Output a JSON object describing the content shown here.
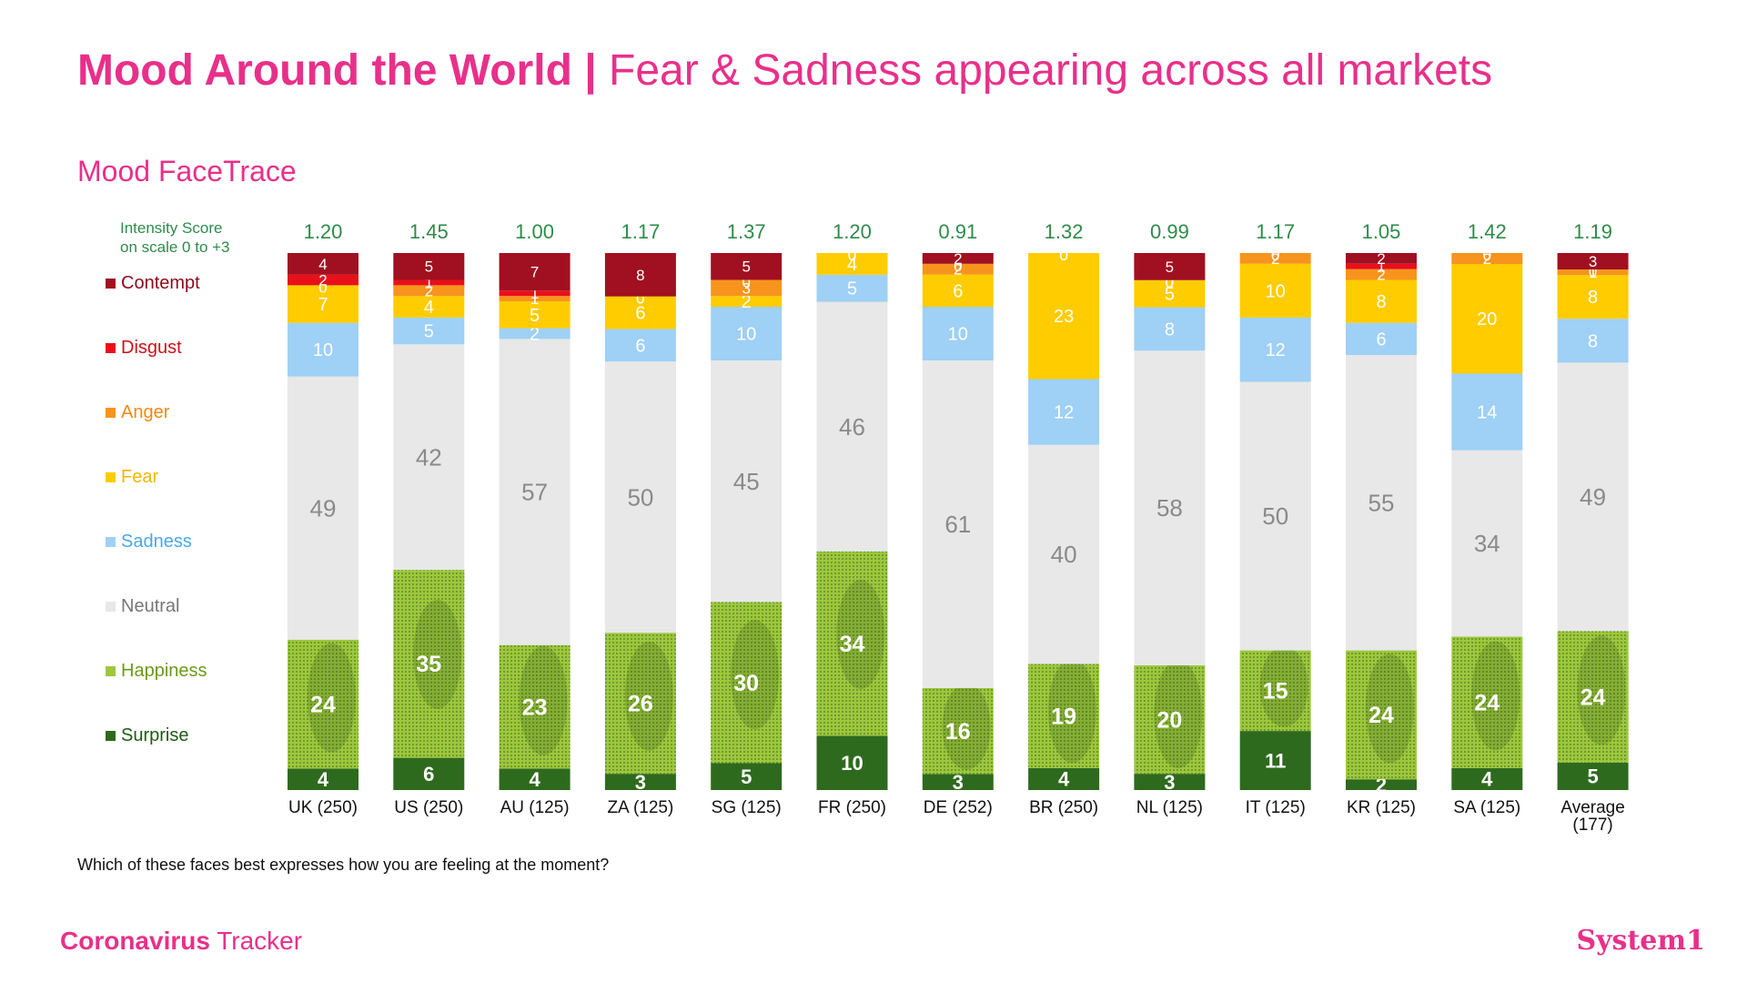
{
  "header": {
    "title_bold": "Mood Around the World |",
    "title_rest": "Fear & Sadness appearing across all markets"
  },
  "subtitle": "Mood FaceTrace",
  "intensity_caption_line1": "Intensity Score",
  "intensity_caption_line2": "on scale 0 to +3",
  "question": "Which of these faces best expresses how you are feeling at the moment?",
  "footer": {
    "brand_bold": "Coronavirus",
    "brand_rest": " Tracker",
    "logo": "System1"
  },
  "legend": [
    {
      "label": "Contempt",
      "color": "#a01020",
      "text_color": "#8b0a1a"
    },
    {
      "label": "Disgust",
      "color": "#e8101a",
      "text_color": "#d0101a"
    },
    {
      "label": "Anger",
      "color": "#f7941d",
      "text_color": "#f08a10"
    },
    {
      "label": "Fear",
      "color": "#ffcc00",
      "text_color": "#f0b800"
    },
    {
      "label": "Sadness",
      "color": "#9fd0f5",
      "text_color": "#4aa8e8"
    },
    {
      "label": "Neutral",
      "color": "#e8e8e8",
      "text_color": "#777777"
    },
    {
      "label": "Happiness",
      "color": "#9cc83c",
      "text_color": "#6a9a1a",
      "icon": "face-icon"
    },
    {
      "label": "Surprise",
      "color": "#2e6a1e",
      "text_color": "#1f5a14"
    }
  ],
  "chart_data": {
    "type": "bar",
    "stacked": true,
    "percent": true,
    "categories": [
      "UK (250)",
      "US (250)",
      "AU (125)",
      "ZA (125)",
      "SG (125)",
      "FR (250)",
      "DE (252)",
      "BR (250)",
      "NL (125)",
      "IT (125)",
      "KR (125)",
      "SA (125)",
      "Average (177)"
    ],
    "intensity_scores": [
      "1.20",
      "1.45",
      "1.00",
      "1.17",
      "1.37",
      "1.20",
      "0.91",
      "1.32",
      "0.99",
      "1.17",
      "1.05",
      "1.42",
      "1.19"
    ],
    "series": [
      {
        "name": "Surprise",
        "color": "#2e6a1e",
        "values": [
          4,
          6,
          4,
          3,
          5,
          10,
          3,
          4,
          3,
          11,
          2,
          4,
          5
        ]
      },
      {
        "name": "Happiness",
        "color": "#9cc83c",
        "values": [
          24,
          35,
          23,
          26,
          30,
          34,
          16,
          19,
          20,
          15,
          24,
          24,
          24
        ]
      },
      {
        "name": "Neutral",
        "color": "#e8e8e8",
        "values": [
          49,
          42,
          57,
          50,
          45,
          46,
          61,
          40,
          58,
          50,
          55,
          34,
          49
        ]
      },
      {
        "name": "Sadness",
        "color": "#9fd0f5",
        "values": [
          10,
          5,
          2,
          6,
          10,
          5,
          10,
          12,
          8,
          12,
          6,
          14,
          8
        ]
      },
      {
        "name": "Fear",
        "color": "#ffcc00",
        "values": [
          7,
          4,
          5,
          6,
          2,
          4,
          6,
          23,
          5,
          10,
          8,
          20,
          8
        ]
      },
      {
        "name": "Anger",
        "color": "#f7941d",
        "values": [
          0,
          2,
          1,
          0,
          3,
          0,
          2,
          0,
          0,
          2,
          2,
          2,
          1
        ]
      },
      {
        "name": "Disgust",
        "color": "#e8101a",
        "values": [
          2,
          1,
          1,
          0,
          0,
          0,
          0,
          0,
          0,
          0,
          1,
          0,
          0
        ]
      },
      {
        "name": "Contempt",
        "color": "#a01020",
        "values": [
          4,
          5,
          7,
          8,
          5,
          0,
          2,
          0,
          5,
          0,
          2,
          0,
          3
        ]
      }
    ],
    "ylim": [
      0,
      100
    ],
    "grid": false,
    "legend_position": "left"
  }
}
